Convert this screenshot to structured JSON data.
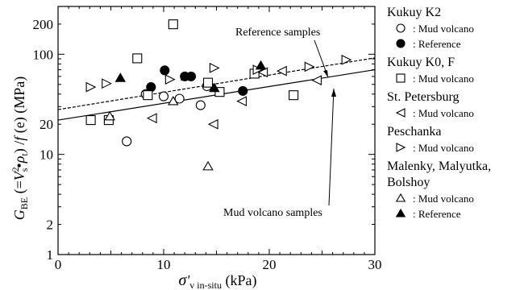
{
  "chart_data": {
    "type": "scatter",
    "xlabel": "σ'v in-situ (kPa)",
    "xlabel_parts": {
      "main": "σ",
      "prime": "'",
      "sub": "v in-situ",
      "unit": " (kPa)"
    },
    "ylabel": "GBE (=V2s•ρt) /f (e) (MPa)",
    "ylabel_parts": {
      "g": "G",
      "g_sub": "BE",
      "open": " (=",
      "v": "V",
      "v_sup": "2",
      "v_sub": "s",
      "dot": "•",
      "rho": "ρ",
      "rho_sub": "t",
      "close": ") /",
      "f": "f",
      "e_part": " (e) (MPa)"
    },
    "xlim": [
      0,
      30
    ],
    "ylim": [
      1,
      300
    ],
    "yscale": "log",
    "x_ticks": [
      "0",
      "10",
      "20",
      "30"
    ],
    "y_ticks": [
      {
        "value": 1,
        "label": "1"
      },
      {
        "value": 2,
        "label": "2"
      },
      {
        "value": 10,
        "label": "10"
      },
      {
        "value": 20,
        "label": "20"
      },
      {
        "value": 100,
        "label": "100"
      },
      {
        "value": 200,
        "label": "200"
      }
    ],
    "series": [
      {
        "marker": "circle-open",
        "points": [
          [
            6.5,
            13.5
          ],
          [
            8.3,
            40
          ],
          [
            10,
            38
          ],
          [
            11.5,
            36
          ],
          [
            14.1,
            48
          ],
          [
            13.5,
            31
          ]
        ]
      },
      {
        "marker": "circle-filled",
        "points": [
          [
            8.8,
            47
          ],
          [
            10.1,
            69
          ],
          [
            12,
            60
          ],
          [
            12.6,
            60
          ],
          [
            17.5,
            43
          ]
        ]
      },
      {
        "marker": "square-open",
        "points": [
          [
            3.1,
            22
          ],
          [
            4.8,
            22
          ],
          [
            7.5,
            91
          ],
          [
            8.5,
            39
          ],
          [
            10.9,
            199
          ],
          [
            14.2,
            52
          ],
          [
            15.3,
            42
          ],
          [
            18.6,
            64
          ],
          [
            22.3,
            39
          ]
        ]
      },
      {
        "marker": "tri-left-open",
        "points": [
          [
            8.9,
            23
          ],
          [
            14.7,
            20
          ],
          [
            17.4,
            34
          ],
          [
            19.4,
            66
          ],
          [
            24.5,
            55
          ],
          [
            21.2,
            68
          ]
        ]
      },
      {
        "marker": "tri-right-open",
        "points": [
          [
            3.1,
            47
          ],
          [
            4.6,
            51
          ],
          [
            10.6,
            56
          ],
          [
            14.8,
            73
          ],
          [
            18.9,
            70
          ],
          [
            23.8,
            75
          ],
          [
            27.3,
            88
          ]
        ]
      },
      {
        "marker": "tri-up-open",
        "points": [
          [
            4.9,
            24
          ],
          [
            10.9,
            34
          ],
          [
            14.2,
            7.6
          ]
        ]
      },
      {
        "marker": "tri-up-filled",
        "points": [
          [
            5.9,
            58
          ],
          [
            12.1,
            60
          ],
          [
            14.8,
            46
          ],
          [
            19.2,
            77
          ]
        ]
      }
    ],
    "fit_lines": [
      {
        "name": "Mud volcano samples",
        "style": "solid",
        "x": [
          0,
          30
        ],
        "y": [
          22,
          70
        ]
      },
      {
        "name": "Reference samples",
        "style": "dashed",
        "x": [
          0,
          30
        ],
        "y": [
          28,
          92
        ]
      }
    ],
    "annotations": [
      {
        "text": "Reference samples",
        "target": "dashed"
      },
      {
        "text": "Mud volcano samples",
        "target": "solid"
      }
    ],
    "legend": {
      "placement": "right-outside",
      "groups": [
        {
          "title": "Kukuy K2",
          "entries": [
            {
              "marker": "circle-open",
              "label": ": Mud volcano"
            },
            {
              "marker": "circle-filled",
              "label": ": Reference"
            }
          ]
        },
        {
          "title": "Kukuy K0, F",
          "entries": [
            {
              "marker": "square-open",
              "label": ": Mud volcano"
            }
          ]
        },
        {
          "title": "St. Petersburg",
          "entries": [
            {
              "marker": "tri-left-open",
              "label": ": Mud volcano"
            }
          ]
        },
        {
          "title": "Peschanka",
          "entries": [
            {
              "marker": "tri-right-open",
              "label": ": Mud volcano"
            }
          ]
        },
        {
          "title_lines": [
            "Malenky, Malyutka,",
            "Bolshoy"
          ],
          "entries": [
            {
              "marker": "tri-up-open",
              "label": ": Mud volcano"
            },
            {
              "marker": "tri-up-filled",
              "label": ": Reference"
            }
          ]
        }
      ]
    }
  }
}
